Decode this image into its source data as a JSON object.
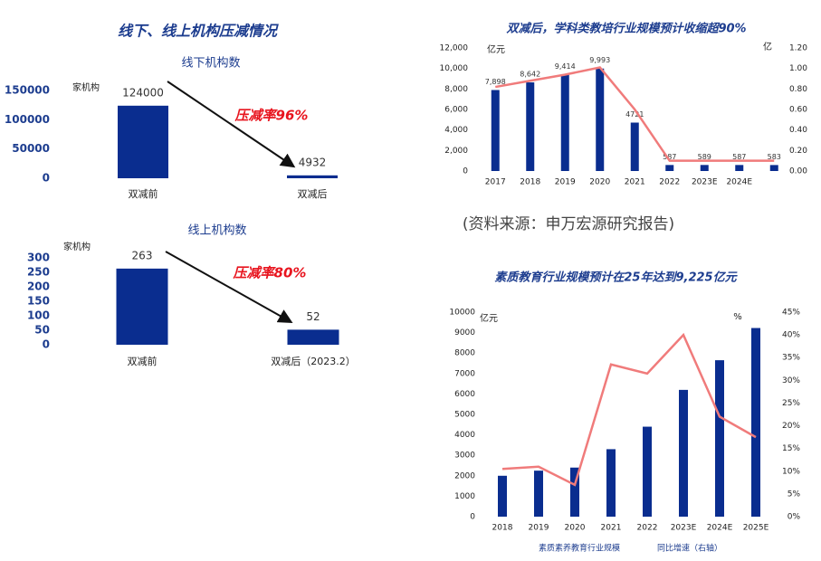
{
  "heading": "线下、线上机构压减情况",
  "source": "(资料来源：申万宏源研究报告)",
  "chart_data": [
    {
      "type": "bar",
      "title": "线下机构数",
      "y_label": "家机构",
      "annotation": "压减率96%",
      "categories": [
        "双减前",
        "双减后"
      ],
      "series": [
        {
          "color": "#0a2d8f",
          "values": [
            124000,
            4932
          ]
        }
      ],
      "ylim": [
        0,
        150000
      ],
      "yticks": [
        0,
        50000,
        100000,
        150000
      ]
    },
    {
      "type": "bar",
      "title": "线上机构数",
      "y_label": "家机构",
      "annotation": "压减率80%",
      "categories": [
        "双减前",
        "双减后（2023.2）"
      ],
      "series": [
        {
          "color": "#0a2d8f",
          "values": [
            263,
            52
          ]
        }
      ],
      "ylim": [
        0,
        300
      ],
      "yticks": [
        0,
        50,
        100,
        150,
        200,
        250,
        300
      ]
    },
    {
      "type": "combo",
      "title": "双减后，学科类教培行业规模预计收缩超90%",
      "y_label": "亿元",
      "y2_label": "亿",
      "categories": [
        "2017",
        "2018",
        "2019",
        "2020",
        "2021",
        "2022",
        "2023E",
        "2024E",
        null
      ],
      "series": [
        {
          "color": "#0a2d8f",
          "values": [
            7898,
            8642,
            9414,
            9993,
            4721,
            587,
            589,
            587,
            583
          ],
          "value_labels": [
            "7,898",
            "8,642",
            "9,414",
            "9,993",
            "4721",
            "587",
            "589",
            "587",
            "583"
          ]
        },
        {
          "color": "#f07b7b",
          "axis": "y2",
          "values": [
            0.82,
            0.88,
            0.94,
            1.01,
            0.6,
            0.1,
            0.1,
            0.1,
            0.1
          ]
        }
      ],
      "ylim": [
        0,
        12000
      ],
      "yticks": [
        0,
        {
          "value": 2000,
          "label": "2,000"
        },
        {
          "value": 4000,
          "label": "4,000"
        },
        {
          "value": 6000,
          "label": "6,000"
        },
        {
          "value": 8000,
          "label": "8,000"
        },
        {
          "value": 10000,
          "label": "10,000"
        },
        {
          "value": 12000,
          "label": "12,000"
        }
      ],
      "y2lim": [
        0,
        1.2
      ],
      "y2ticks": [
        {
          "value": 0,
          "label": "0.00"
        },
        {
          "value": 0.2,
          "label": "0.20"
        },
        {
          "value": 0.4,
          "label": "0.40"
        },
        {
          "value": 0.6,
          "label": "0.60"
        },
        {
          "value": 0.8,
          "label": "0.80"
        },
        {
          "value": 1.0,
          "label": "1.00"
        },
        {
          "value": 1.2,
          "label": "1.20"
        }
      ]
    },
    {
      "type": "combo",
      "title": "素质教育行业规模预计在25年达到9,225亿元",
      "y_label": "亿元",
      "y2_label": "%",
      "categories": [
        "2018",
        "2019",
        "2020",
        "2021",
        "2022",
        "2023E",
        "2024E",
        "2025E"
      ],
      "series": [
        {
          "name": "素质素养教育行业规模",
          "color": "#0a2d8f",
          "values": [
            2000,
            2250,
            2400,
            3300,
            4400,
            6200,
            7650,
            9225
          ]
        },
        {
          "name": "同比增速（右轴）",
          "color": "#f07b7b",
          "axis": "y2",
          "values": [
            10.5,
            11,
            7,
            33.5,
            31.5,
            40,
            22,
            17.5
          ]
        }
      ],
      "ylim": [
        0,
        10000
      ],
      "yticks": [
        0,
        1000,
        2000,
        3000,
        4000,
        5000,
        6000,
        7000,
        8000,
        9000,
        10000
      ],
      "y2lim": [
        0,
        45
      ],
      "y2ticks": [
        {
          "value": 0,
          "label": "0%"
        },
        {
          "value": 5,
          "label": "5%"
        },
        {
          "value": 10,
          "label": "10%"
        },
        {
          "value": 15,
          "label": "15%"
        },
        {
          "value": 20,
          "label": "20%"
        },
        {
          "value": 25,
          "label": "25%"
        },
        {
          "value": 30,
          "label": "30%"
        },
        {
          "value": 35,
          "label": "35%"
        },
        {
          "value": 40,
          "label": "40%"
        },
        {
          "value": 45,
          "label": "45%"
        }
      ]
    }
  ]
}
